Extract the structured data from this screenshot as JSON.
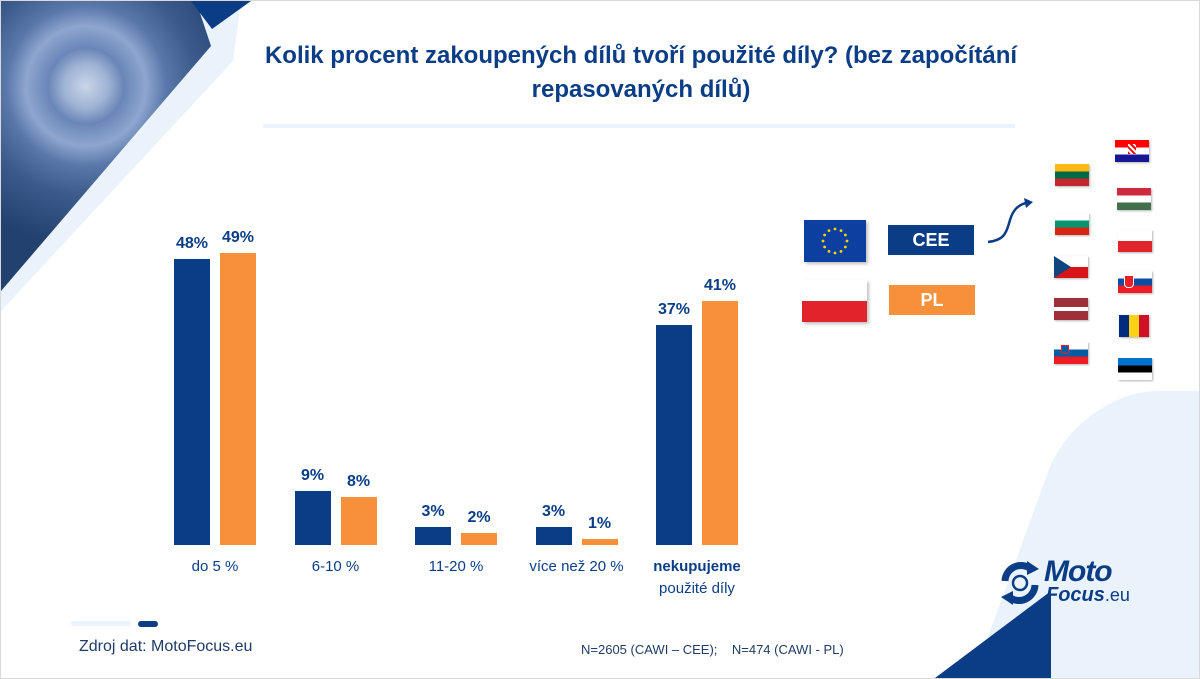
{
  "title": "Kolik procent zakoupených dílů tvoří použité díly? (bez započítání repasovaných dílů)",
  "chart_data": {
    "type": "bar",
    "title": "Kolik procent zakoupených dílů tvoří použité díly? (bez započítání repasovaných dílů)",
    "xlabel": "",
    "ylabel": "",
    "ylim": [
      0,
      50
    ],
    "grid": false,
    "categories": [
      "do 5 %",
      "6-10 %",
      "11-20 %",
      "více než 20 %",
      "nekupujeme použité díly"
    ],
    "category_display": [
      {
        "main": "do 5 %",
        "sub": ""
      },
      {
        "main": "6-10 %",
        "sub": ""
      },
      {
        "main": "11-20 %",
        "sub": ""
      },
      {
        "main": "více než 20 %",
        "sub": ""
      },
      {
        "main": "nekupujeme",
        "sub": "použité díly",
        "bold_main": true
      }
    ],
    "series": [
      {
        "name": "CEE",
        "color": "#0b3d86",
        "values": [
          48,
          9,
          3,
          3,
          37
        ],
        "labels": [
          "48%",
          "9%",
          "3%",
          "3%",
          "37%"
        ]
      },
      {
        "name": "PL",
        "color": "#f7903a",
        "values": [
          49,
          8,
          2,
          1,
          41
        ],
        "labels": [
          "49%",
          "8%",
          "2%",
          "1%",
          "41%"
        ]
      }
    ],
    "legend": "right"
  },
  "legend": {
    "cee_label": "CEE",
    "pl_label": "PL",
    "cee_flag": "eu-flag-icon",
    "pl_flag": "poland-flag-icon"
  },
  "cee_countries": [
    "Lithuania",
    "Croatia",
    "Hungary",
    "Bulgaria",
    "Poland",
    "Czech Republic",
    "Slovakia",
    "Latvia",
    "Romania",
    "Slovenia",
    "Estonia"
  ],
  "logo": {
    "moto": "Moto",
    "focus": "Focus",
    "eu": ".eu"
  },
  "footer": {
    "source": "Zdroj dat: MotoFocus.eu",
    "sample": "N=2605 (CAWI – CEE);    N=474 (CAWI - PL)"
  }
}
